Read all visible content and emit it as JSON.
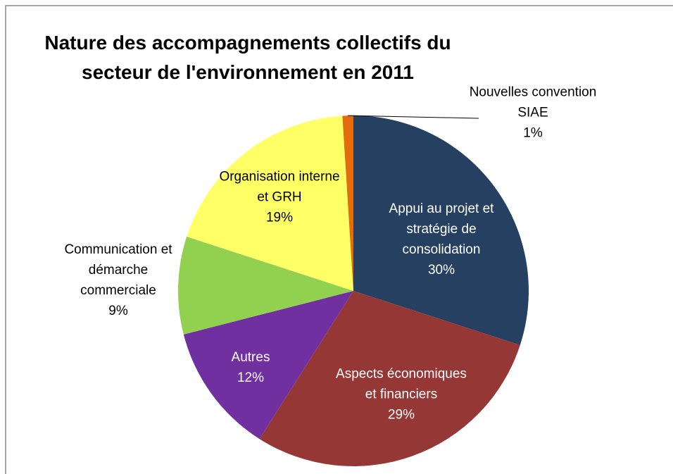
{
  "chart_data": {
    "type": "pie",
    "title": "Nature des accompagnements collectifs du secteur de l'environnement en 2011",
    "categories": [
      "Appui au projet et stratégie de consolidation",
      "Aspects économiques et financiers",
      "Autres",
      "Communication et démarche commerciale",
      "Organisation interne et GRH",
      "Nouvelles convention SIAE"
    ],
    "values": [
      30,
      29,
      12,
      9,
      19,
      1
    ],
    "value_labels": [
      "30%",
      "29%",
      "12%",
      "9%",
      "19%",
      "1%"
    ],
    "colors": [
      "#254061",
      "#953735",
      "#7030a0",
      "#92d050",
      "#ffff66",
      "#e46c0a"
    ]
  }
}
